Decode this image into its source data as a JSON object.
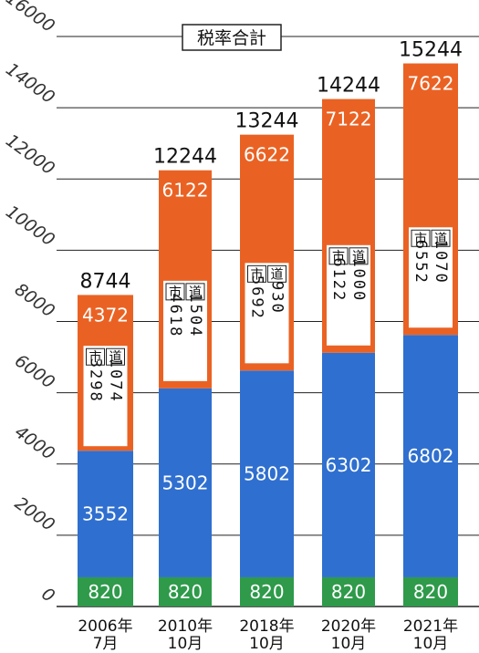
{
  "chart_data": {
    "type": "bar",
    "stacked": true,
    "legend_label": "税率合計",
    "categories": [
      {
        "line1": "2006年",
        "line2": "7月"
      },
      {
        "line1": "2010年",
        "line2": "10月"
      },
      {
        "line1": "2018年",
        "line2": "10月"
      },
      {
        "line1": "2020年",
        "line2": "10月"
      },
      {
        "line1": "2021年",
        "line2": "10月"
      }
    ],
    "totals": [
      8744,
      12244,
      13244,
      14244,
      15244
    ],
    "series": [
      {
        "values": [
          820,
          820,
          820,
          820,
          820
        ],
        "color": "#2e9a4a"
      },
      {
        "values": [
          3552,
          5302,
          5802,
          6302,
          6802
        ],
        "color": "#2f6fcf"
      },
      {
        "values": [
          4372,
          6122,
          6622,
          7122,
          7622
        ],
        "color": "#ea6223"
      }
    ],
    "breakdown_header": [
      "市",
      "道"
    ],
    "breakdown": [
      {
        "shi": "3298",
        "do": "1074"
      },
      {
        "shi": "4618",
        "do": "1504"
      },
      {
        "shi": "5692",
        "do": "930"
      },
      {
        "shi": "6122",
        "do": "1000"
      },
      {
        "shi": "6552",
        "do": "1070"
      }
    ],
    "yticks": [
      0,
      2000,
      4000,
      6000,
      8000,
      10000,
      12000,
      14000,
      16000
    ],
    "ylim": [
      0,
      16000
    ],
    "grid": true
  }
}
